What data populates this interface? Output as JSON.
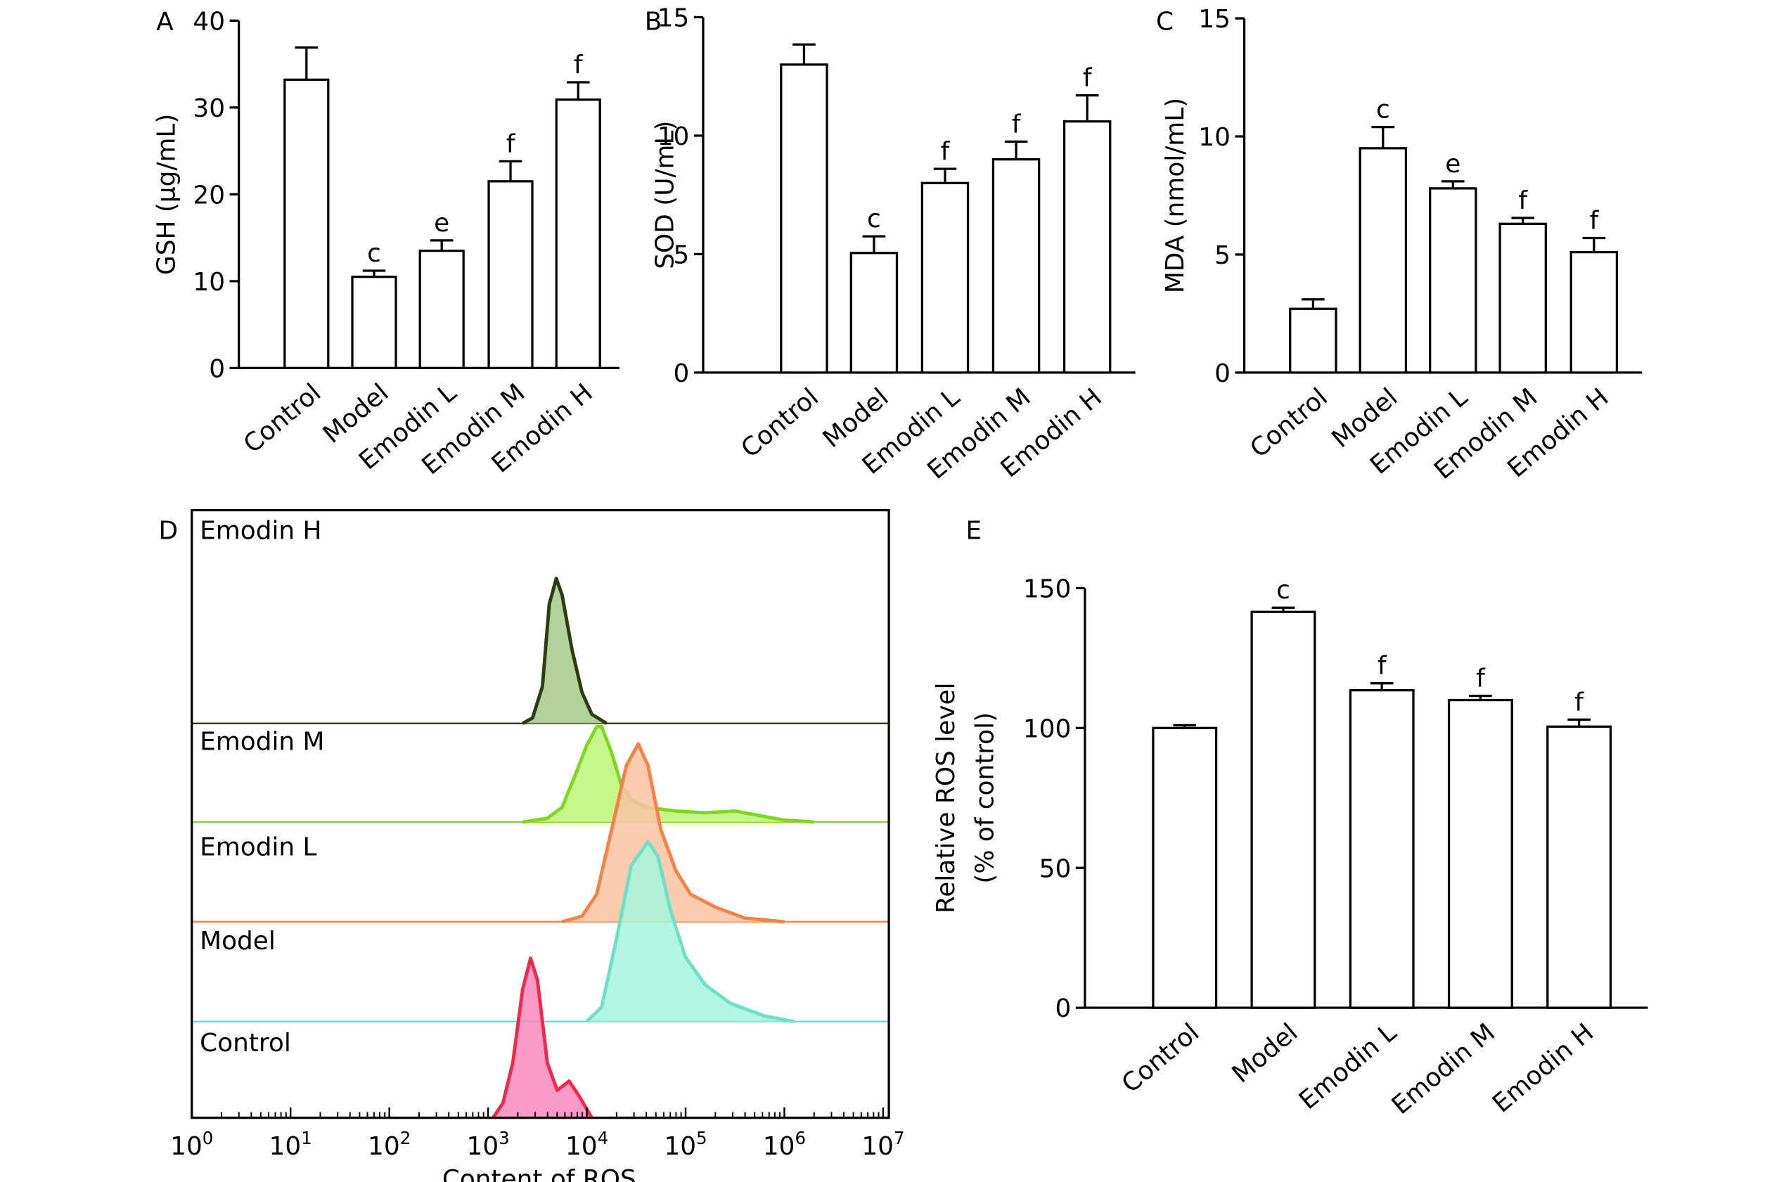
{
  "chart_data": [
    {
      "panel": "A",
      "type": "bar",
      "ylabel": "GSH (μg/mL)",
      "ylim": [
        0,
        40
      ],
      "yticks": [
        0,
        10,
        20,
        30,
        40
      ],
      "categories": [
        "Control",
        "Model",
        "Emodin L",
        "Emodin M",
        "Emodin H"
      ],
      "values": [
        33.2,
        10.5,
        13.5,
        21.5,
        30.9
      ],
      "errors": [
        3.7,
        0.7,
        1.2,
        2.3,
        2.0
      ],
      "annotations": [
        "",
        "c",
        "e",
        "f",
        "f"
      ]
    },
    {
      "panel": "B",
      "type": "bar",
      "ylabel": "SOD (U/mL)",
      "ylim": [
        0,
        15
      ],
      "yticks": [
        0,
        5,
        10,
        15
      ],
      "categories": [
        "Control",
        "Model",
        "Emodin L",
        "Emodin M",
        "Emodin H"
      ],
      "values": [
        13.0,
        5.05,
        8.0,
        9.0,
        10.6
      ],
      "errors": [
        0.85,
        0.7,
        0.6,
        0.75,
        1.1
      ],
      "annotations": [
        "",
        "c",
        "f",
        "f",
        "f"
      ]
    },
    {
      "panel": "C",
      "type": "bar",
      "ylabel": "MDA (nmol/mL)",
      "ylim": [
        0,
        15
      ],
      "yticks": [
        0,
        5,
        10,
        15
      ],
      "categories": [
        "Control",
        "Model",
        "Emodin L",
        "Emodin M",
        "Emodin H"
      ],
      "values": [
        2.7,
        9.5,
        7.8,
        6.3,
        5.1
      ],
      "errors": [
        0.4,
        0.9,
        0.3,
        0.25,
        0.6
      ],
      "annotations": [
        "",
        "c",
        "e",
        "f",
        "f"
      ]
    },
    {
      "panel": "D",
      "type": "area",
      "xlabel": "Content of ROS",
      "xscale": "log",
      "xlim": [
        1,
        10000000
      ],
      "xticks": [
        "10^0",
        "10^1",
        "10^2",
        "10^3",
        "10^4",
        "10^5",
        "10^6",
        "10^7"
      ],
      "series": [
        {
          "name": "Emodin H",
          "fill": "#a8c98a",
          "stroke": "#2c3d12",
          "points": [
            [
              3.35,
              0
            ],
            [
              3.45,
              0.03
            ],
            [
              3.55,
              0.2
            ],
            [
              3.62,
              0.65
            ],
            [
              3.69,
              0.79
            ],
            [
              3.75,
              0.7
            ],
            [
              3.85,
              0.4
            ],
            [
              3.95,
              0.17
            ],
            [
              4.05,
              0.05
            ],
            [
              4.2,
              0
            ]
          ]
        },
        {
          "name": "Emodin M",
          "fill": "#bdf578",
          "stroke": "#7ed81d",
          "points": [
            [
              3.35,
              0
            ],
            [
              3.6,
              0.02
            ],
            [
              3.75,
              0.08
            ],
            [
              3.9,
              0.28
            ],
            [
              4.0,
              0.42
            ],
            [
              4.1,
              0.52
            ],
            [
              4.15,
              0.52
            ],
            [
              4.25,
              0.38
            ],
            [
              4.35,
              0.2
            ],
            [
              4.45,
              0.12
            ],
            [
              4.6,
              0.08
            ],
            [
              4.9,
              0.06
            ],
            [
              5.2,
              0.05
            ],
            [
              5.5,
              0.06
            ],
            [
              5.7,
              0.04
            ],
            [
              6.0,
              0.01
            ],
            [
              6.3,
              0
            ]
          ]
        },
        {
          "name": "Emodin L",
          "fill": "#f9c3a4",
          "stroke": "#f58345",
          "points": [
            [
              3.75,
              0
            ],
            [
              3.95,
              0.03
            ],
            [
              4.1,
              0.15
            ],
            [
              4.25,
              0.5
            ],
            [
              4.4,
              0.85
            ],
            [
              4.52,
              0.97
            ],
            [
              4.62,
              0.85
            ],
            [
              4.75,
              0.5
            ],
            [
              4.9,
              0.28
            ],
            [
              5.05,
              0.15
            ],
            [
              5.3,
              0.08
            ],
            [
              5.6,
              0.02
            ],
            [
              6.0,
              0
            ]
          ]
        },
        {
          "name": "Model",
          "fill": "#a6f5dc",
          "stroke": "#6fe0c8",
          "points": [
            [
              4.0,
              0
            ],
            [
              4.15,
              0.08
            ],
            [
              4.3,
              0.45
            ],
            [
              4.45,
              0.85
            ],
            [
              4.62,
              0.98
            ],
            [
              4.72,
              0.9
            ],
            [
              4.85,
              0.6
            ],
            [
              5.0,
              0.35
            ],
            [
              5.2,
              0.2
            ],
            [
              5.45,
              0.1
            ],
            [
              5.8,
              0.03
            ],
            [
              6.1,
              0
            ]
          ]
        },
        {
          "name": "Control",
          "fill": "#f78bbd",
          "stroke": "#ee2a4f",
          "points": [
            [
              3.05,
              0
            ],
            [
              3.15,
              0.08
            ],
            [
              3.25,
              0.3
            ],
            [
              3.35,
              0.7
            ],
            [
              3.43,
              0.87
            ],
            [
              3.5,
              0.75
            ],
            [
              3.6,
              0.3
            ],
            [
              3.7,
              0.15
            ],
            [
              3.82,
              0.2
            ],
            [
              3.92,
              0.12
            ],
            [
              4.05,
              0
            ]
          ]
        }
      ]
    },
    {
      "panel": "E",
      "type": "bar",
      "ylabel": [
        "Relative ROS level",
        "(% of control)"
      ],
      "ylim": [
        0,
        150
      ],
      "yticks": [
        0,
        50,
        100,
        150
      ],
      "categories": [
        "Control",
        "Model",
        "Emodin L",
        "Emodin M",
        "Emodin H"
      ],
      "values": [
        100,
        141.5,
        113.5,
        110,
        100.5
      ],
      "errors": [
        1,
        1.5,
        2.5,
        1.5,
        2.5
      ],
      "annotations": [
        "",
        "c",
        "f",
        "f",
        "f"
      ]
    }
  ]
}
